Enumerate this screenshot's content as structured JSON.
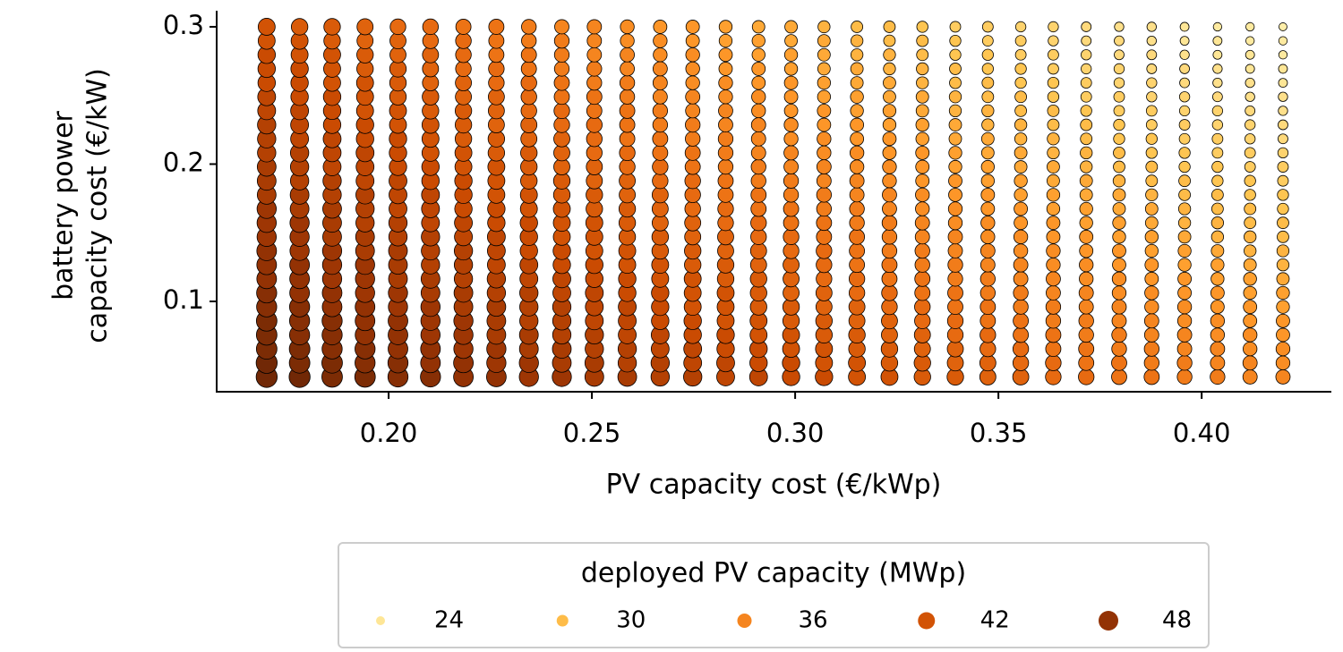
{
  "chart_data": {
    "type": "scatter",
    "xlabel": "PV capacity cost (€/kWp)",
    "ylabel": [
      "battery power",
      "capacity cost (€/kW)"
    ],
    "x": [
      0.17,
      0.1781,
      0.1861,
      0.1942,
      0.2023,
      0.2103,
      0.2184,
      0.2265,
      0.2345,
      0.2426,
      0.2506,
      0.2587,
      0.2668,
      0.2748,
      0.2829,
      0.291,
      0.299,
      0.3071,
      0.3152,
      0.3232,
      0.3313,
      0.3394,
      0.3474,
      0.3555,
      0.3635,
      0.3716,
      0.3797,
      0.3877,
      0.3958,
      0.4039,
      0.4119,
      0.42
    ],
    "y": [
      0.045,
      0.0552,
      0.0654,
      0.0756,
      0.0858,
      0.096,
      0.1062,
      0.1164,
      0.1266,
      0.1368,
      0.147,
      0.1572,
      0.1674,
      0.1776,
      0.1878,
      0.198,
      0.2082,
      0.2184,
      0.2286,
      0.2388,
      0.249,
      0.2592,
      0.2694,
      0.2796,
      0.2898,
      0.3
    ],
    "values": [
      [
        51,
        51,
        50,
        50,
        49,
        49,
        48,
        48,
        47,
        47,
        46,
        46,
        45,
        45,
        44,
        44,
        43,
        43,
        42,
        42,
        41,
        41,
        40,
        40,
        39,
        39,
        38,
        38,
        37,
        37,
        36,
        36
      ],
      [
        51,
        50,
        50,
        49,
        49,
        48,
        48,
        47,
        47,
        46,
        46,
        45,
        45,
        44,
        44,
        43,
        43,
        42,
        42,
        41,
        41,
        40,
        40,
        39,
        39,
        38,
        38,
        37,
        37,
        36,
        36,
        35
      ],
      [
        50,
        50,
        49,
        49,
        48,
        48,
        47,
        47,
        46,
        46,
        45,
        45,
        44,
        44,
        43,
        43,
        42,
        42,
        41,
        41,
        40,
        40,
        39,
        39,
        38,
        38,
        37,
        37,
        36,
        36,
        35,
        35
      ],
      [
        50,
        49,
        49,
        48,
        48,
        47,
        47,
        46,
        46,
        45,
        45,
        44,
        44,
        43,
        43,
        42,
        42,
        41,
        41,
        40,
        40,
        39,
        39,
        38,
        38,
        37,
        37,
        36,
        36,
        35,
        35,
        34
      ],
      [
        50,
        49,
        49,
        48,
        48,
        47,
        47,
        46,
        45,
        45,
        44,
        44,
        43,
        43,
        42,
        42,
        41,
        41,
        40,
        40,
        39,
        39,
        38,
        38,
        37,
        37,
        36,
        36,
        35,
        35,
        34,
        34
      ],
      [
        49,
        49,
        48,
        48,
        47,
        47,
        46,
        46,
        45,
        45,
        44,
        44,
        43,
        42,
        42,
        41,
        41,
        40,
        40,
        39,
        39,
        38,
        38,
        37,
        37,
        36,
        36,
        35,
        35,
        34,
        34,
        33
      ],
      [
        49,
        48,
        48,
        47,
        47,
        46,
        46,
        45,
        45,
        44,
        44,
        43,
        43,
        42,
        42,
        41,
        40,
        40,
        39,
        39,
        38,
        38,
        37,
        37,
        36,
        36,
        35,
        35,
        34,
        34,
        33,
        33
      ],
      [
        48,
        48,
        47,
        47,
        46,
        46,
        45,
        45,
        44,
        44,
        43,
        43,
        42,
        42,
        41,
        41,
        40,
        39,
        39,
        38,
        38,
        37,
        37,
        36,
        36,
        35,
        35,
        34,
        34,
        33,
        33,
        32
      ],
      [
        48,
        48,
        47,
        47,
        46,
        45,
        45,
        44,
        44,
        43,
        43,
        42,
        42,
        41,
        41,
        40,
        40,
        39,
        38,
        38,
        37,
        37,
        36,
        36,
        35,
        35,
        34,
        34,
        33,
        33,
        32,
        31
      ],
      [
        48,
        47,
        47,
        46,
        46,
        45,
        45,
        44,
        43,
        43,
        42,
        42,
        41,
        41,
        40,
        40,
        39,
        39,
        38,
        37,
        37,
        36,
        36,
        35,
        35,
        34,
        34,
        33,
        33,
        32,
        31,
        31
      ],
      [
        47,
        47,
        46,
        46,
        45,
        45,
        44,
        44,
        43,
        42,
        42,
        41,
        41,
        40,
        40,
        39,
        39,
        38,
        38,
        37,
        36,
        36,
        35,
        35,
        34,
        34,
        33,
        33,
        32,
        31,
        31,
        30
      ],
      [
        47,
        47,
        46,
        45,
        45,
        44,
        44,
        43,
        43,
        42,
        42,
        41,
        40,
        40,
        39,
        39,
        38,
        38,
        37,
        37,
        36,
        35,
        35,
        34,
        34,
        33,
        33,
        32,
        31,
        31,
        30,
        30
      ],
      [
        47,
        46,
        46,
        45,
        44,
        44,
        43,
        43,
        42,
        42,
        41,
        41,
        40,
        39,
        39,
        38,
        38,
        37,
        37,
        36,
        35,
        35,
        34,
        34,
        33,
        33,
        32,
        32,
        31,
        30,
        30,
        29
      ],
      [
        46,
        46,
        45,
        45,
        44,
        44,
        43,
        42,
        42,
        41,
        41,
        40,
        40,
        39,
        38,
        38,
        37,
        37,
        36,
        36,
        35,
        34,
        34,
        33,
        33,
        32,
        32,
        31,
        30,
        30,
        29,
        29
      ],
      [
        46,
        45,
        45,
        44,
        44,
        43,
        43,
        42,
        41,
        41,
        40,
        40,
        39,
        39,
        38,
        37,
        37,
        36,
        36,
        35,
        34,
        34,
        33,
        33,
        32,
        32,
        31,
        30,
        30,
        29,
        29,
        28
      ],
      [
        46,
        45,
        44,
        44,
        43,
        43,
        42,
        42,
        41,
        40,
        40,
        39,
        39,
        38,
        37,
        37,
        36,
        36,
        35,
        35,
        34,
        33,
        33,
        32,
        32,
        31,
        30,
        30,
        29,
        29,
        28,
        28
      ],
      [
        45,
        45,
        44,
        44,
        43,
        42,
        42,
        41,
        41,
        40,
        39,
        39,
        38,
        38,
        37,
        36,
        36,
        35,
        35,
        34,
        34,
        33,
        32,
        32,
        31,
        31,
        30,
        29,
        29,
        28,
        28,
        27
      ],
      [
        45,
        44,
        44,
        43,
        43,
        42,
        41,
        41,
        40,
        40,
        39,
        38,
        38,
        37,
        37,
        36,
        35,
        35,
        34,
        34,
        33,
        32,
        32,
        31,
        31,
        30,
        29,
        29,
        28,
        28,
        27,
        26
      ],
      [
        45,
        44,
        43,
        43,
        42,
        42,
        41,
        40,
        40,
        39,
        39,
        38,
        37,
        37,
        36,
        36,
        35,
        34,
        34,
        33,
        33,
        32,
        31,
        31,
        30,
        30,
        29,
        28,
        28,
        27,
        27,
        26
      ],
      [
        44,
        44,
        43,
        42,
        42,
        41,
        41,
        40,
        39,
        39,
        38,
        38,
        37,
        36,
        36,
        35,
        34,
        34,
        33,
        33,
        32,
        31,
        31,
        30,
        30,
        29,
        28,
        28,
        27,
        27,
        26,
        25
      ],
      [
        44,
        43,
        43,
        42,
        41,
        41,
        40,
        40,
        39,
        38,
        38,
        37,
        36,
        36,
        35,
        35,
        34,
        33,
        33,
        32,
        32,
        31,
        30,
        30,
        29,
        28,
        28,
        27,
        27,
        26,
        25,
        25
      ],
      [
        43,
        43,
        42,
        42,
        41,
        40,
        40,
        39,
        39,
        38,
        37,
        37,
        36,
        35,
        35,
        34,
        34,
        33,
        32,
        32,
        31,
        30,
        30,
        29,
        29,
        28,
        27,
        27,
        26,
        25,
        25,
        24
      ],
      [
        43,
        43,
        42,
        41,
        41,
        40,
        39,
        39,
        38,
        37,
        37,
        36,
        36,
        35,
        34,
        34,
        33,
        32,
        32,
        31,
        31,
        30,
        29,
        29,
        28,
        27,
        27,
        26,
        26,
        25,
        24,
        24
      ],
      [
        43,
        42,
        42,
        41,
        40,
        40,
        39,
        38,
        38,
        37,
        36,
        36,
        35,
        35,
        34,
        33,
        33,
        32,
        31,
        31,
        30,
        29,
        29,
        28,
        28,
        27,
        26,
        26,
        25,
        24,
        24,
        23
      ],
      [
        42,
        42,
        41,
        40,
        40,
        39,
        39,
        38,
        37,
        37,
        36,
        35,
        35,
        34,
        33,
        33,
        32,
        32,
        31,
        30,
        30,
        29,
        28,
        28,
        27,
        26,
        26,
        25,
        24,
        24,
        23,
        23
      ],
      [
        42,
        41,
        41,
        40,
        39,
        39,
        38,
        38,
        37,
        36,
        36,
        35,
        34,
        34,
        33,
        32,
        32,
        31,
        30,
        30,
        29,
        28,
        28,
        27,
        27,
        26,
        25,
        25,
        24,
        23,
        23,
        22
      ]
    ],
    "xlim": [
      0.1577,
      0.4319
    ],
    "ylim": [
      0.0342,
      0.3117
    ],
    "xticks": [
      {
        "value": 0.2,
        "label": "0.20"
      },
      0.25,
      {
        "value": 0.3,
        "label": "0.30"
      },
      0.35,
      {
        "value": 0.4,
        "label": "0.40"
      }
    ],
    "yticks": [
      0.1,
      0.2,
      0.3
    ],
    "colormap": [
      "#fff7bc",
      "#fee391",
      "#fec44f",
      "#fe9929",
      "#ec7014",
      "#cc4c02",
      "#993404",
      "#662506"
    ],
    "value_range": [
      20,
      52
    ],
    "legend": {
      "title": "deployed PV capacity (MWp)",
      "entries": [
        24,
        30,
        36,
        42,
        48
      ],
      "position": "bottom"
    }
  }
}
